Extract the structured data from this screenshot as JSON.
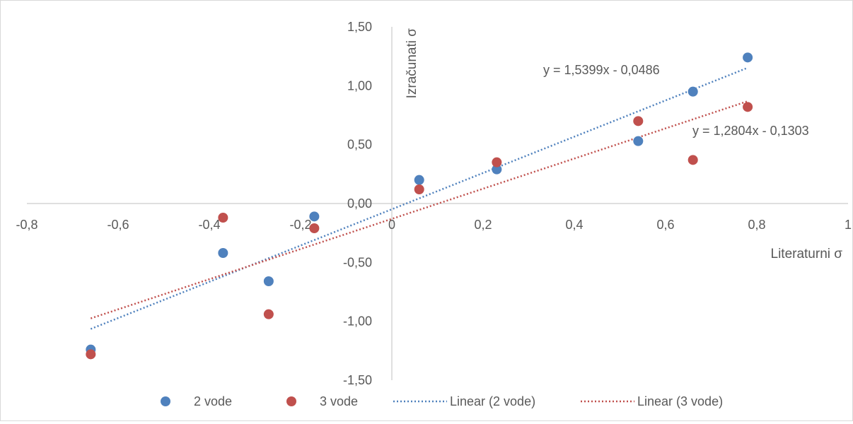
{
  "chart_data": {
    "type": "scatter",
    "xlabel": "Literaturni σ",
    "ylabel": "Izračunati σ",
    "xlim": [
      -0.8,
      1
    ],
    "ylim": [
      -1.5,
      1.5
    ],
    "x_ticks": [
      -0.8,
      -0.6,
      -0.4,
      -0.2,
      0,
      0.2,
      0.4,
      0.6,
      0.8,
      1
    ],
    "x_tick_labels": [
      "-0,8",
      "-0,6",
      "-0,4",
      "-0,2",
      "0",
      "0,2",
      "0,4",
      "0,6",
      "0,8",
      "1"
    ],
    "y_ticks": [
      -1.5,
      -1.0,
      -0.5,
      0,
      0.5,
      1.0,
      1.5
    ],
    "y_tick_labels": [
      "-1,50",
      "-1,00",
      "-0,50",
      "0,00",
      "0,50",
      "1,00",
      "1,50"
    ],
    "grid": false,
    "legend_position": "bottom",
    "series": [
      {
        "name": "2 vode",
        "color": "#4f81bd",
        "points": [
          [
            -0.66,
            -1.24
          ],
          [
            -0.37,
            -0.42
          ],
          [
            -0.27,
            -0.66
          ],
          [
            -0.17,
            -0.11
          ],
          [
            0.06,
            0.2
          ],
          [
            0.23,
            0.29
          ],
          [
            0.54,
            0.53
          ],
          [
            0.66,
            0.95
          ],
          [
            0.78,
            1.24
          ]
        ]
      },
      {
        "name": "3 vode",
        "color": "#c0504d",
        "points": [
          [
            -0.66,
            -1.28
          ],
          [
            -0.37,
            -0.12
          ],
          [
            -0.27,
            -0.94
          ],
          [
            -0.17,
            -0.21
          ],
          [
            0.06,
            0.12
          ],
          [
            0.23,
            0.35
          ],
          [
            0.54,
            0.7
          ],
          [
            0.66,
            0.37
          ],
          [
            0.78,
            0.82
          ]
        ]
      }
    ],
    "trendlines": [
      {
        "name": "Linear (2 vode)",
        "color": "#4f81bd",
        "slope": 1.5399,
        "intercept": -0.0486,
        "x_range": [
          -0.66,
          0.78
        ],
        "equation": "y = 1,5399x - 0,0486"
      },
      {
        "name": "Linear (3 vode)",
        "color": "#c0504d",
        "slope": 1.2804,
        "intercept": -0.1303,
        "x_range": [
          -0.66,
          0.78
        ],
        "equation": "y = 1,2804x - 0,1303"
      }
    ]
  }
}
